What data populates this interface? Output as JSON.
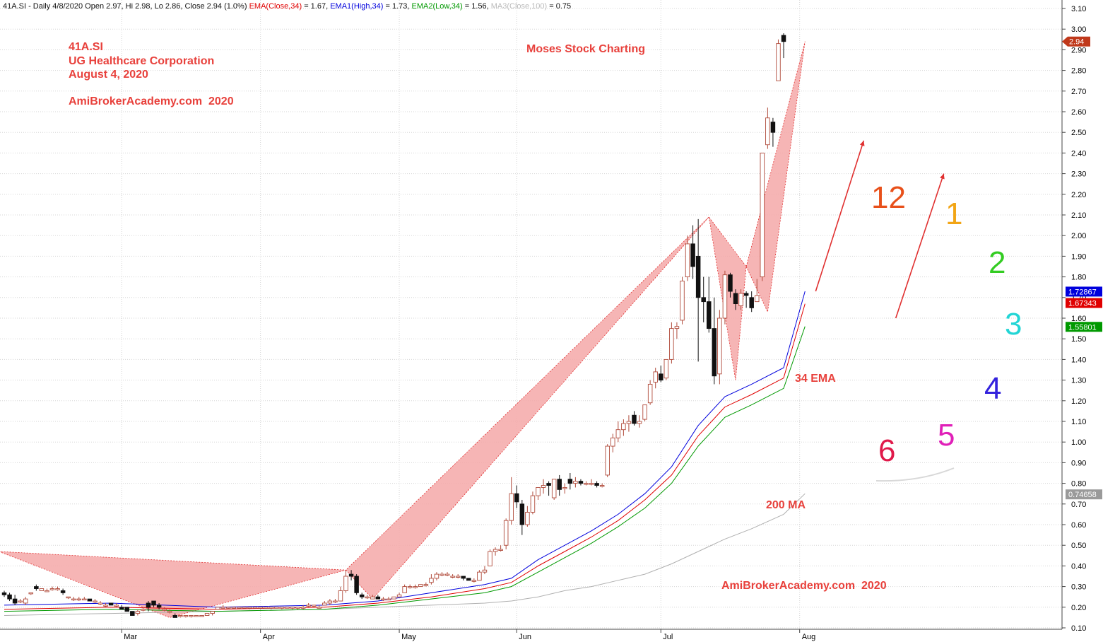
{
  "header": {
    "main": "41A.SI - Daily 4/8/2020 Open 2.97, Hi 2.98, Lo 2.86, Close 2.94 (1.0%)",
    "ema": "EMA(Close,34)",
    "ema_val": " = 1.67,",
    "ema1": "EMA1(High,34)",
    "ema1_val": " = 1.73,",
    "ema2": "EMA2(Low,34)",
    "ema2_val": " = 1.56,",
    "ma3": "MA3(Close,100)",
    "ma3_val": " = 0.75"
  },
  "annotations": {
    "symbol": "41A.SI",
    "company": "UG Healthcare Corporation",
    "date": "August 4, 2020",
    "site_top": "AmiBrokerAcademy.com  2020",
    "moses": "Moses Stock Charting",
    "ema_label": "34 EMA",
    "ma_label": "200 MA",
    "site_bottom": "AmiBrokerAcademy.com  2020"
  },
  "clock": {
    "numbers": [
      "12",
      "1",
      "2",
      "3",
      "4",
      "5",
      "6"
    ],
    "colors": [
      "#e8501a",
      "#f2a515",
      "#33cc22",
      "#22d5d5",
      "#3322dd",
      "#e020b8",
      "#e01a4a"
    ]
  },
  "colors": {
    "ema_close": "#e00000",
    "ema_high": "#0000dd",
    "ema_low": "#009900",
    "ma": "#b0b0b0",
    "pattern_fill": "#f4a8a8",
    "pattern_edge": "#e03030",
    "arrow": "#e03030"
  },
  "price_tags": [
    {
      "label": "2.94",
      "value": 2.94,
      "color": "#c0391b",
      "shape": "arrow"
    },
    {
      "label": "1.72867",
      "value": 1.72867,
      "color": "#0000dd"
    },
    {
      "label": "1.67343",
      "value": 1.67343,
      "color": "#e00000"
    },
    {
      "label": "1.55801",
      "value": 1.55801,
      "color": "#009900"
    },
    {
      "label": "0.74658",
      "value": 0.74658,
      "color": "#9a9a9a"
    }
  ],
  "chart_data": {
    "type": "candlestick",
    "ylim": [
      0.1,
      3.1
    ],
    "y_ticks": [
      0.1,
      0.2,
      0.3,
      0.4,
      0.5,
      0.6,
      0.7,
      0.8,
      0.9,
      1.0,
      1.1,
      1.2,
      1.3,
      1.4,
      1.5,
      1.6,
      1.7,
      1.8,
      1.9,
      2.0,
      2.1,
      2.2,
      2.3,
      2.4,
      2.5,
      2.6,
      2.7,
      2.8,
      2.9,
      3.0,
      3.1
    ],
    "y_tick_labels": [
      "0.10",
      "0.20",
      "0.30",
      "0.40",
      "0.50",
      "0.60",
      "0.70",
      "0.80",
      "0.90",
      "1.00",
      "1.10",
      "1.20",
      "1.30",
      "1.40",
      "1.50",
      "1.60",
      "1.70",
      "1.80",
      "1.90",
      "2.00",
      "2.10",
      "2.20",
      "2.30",
      "2.40",
      "2.50",
      "2.60",
      "2.70",
      "2.80",
      "2.90",
      "3.00",
      "3.10"
    ],
    "x_ticks": [
      {
        "label": "Mar",
        "index": 22
      },
      {
        "label": "Apr",
        "index": 48
      },
      {
        "label": "May",
        "index": 74
      },
      {
        "label": "Jun",
        "index": 96
      },
      {
        "label": "Jul",
        "index": 123
      },
      {
        "label": "Aug",
        "index": 149
      }
    ],
    "candles": [
      [
        0.27,
        0.28,
        0.25,
        0.26
      ],
      [
        0.26,
        0.27,
        0.23,
        0.24
      ],
      [
        0.24,
        0.26,
        0.21,
        0.22
      ],
      [
        0.23,
        0.24,
        0.22,
        0.23
      ],
      [
        0.22,
        0.25,
        0.21,
        0.24
      ],
      [
        0.27,
        0.27,
        0.26,
        0.27
      ],
      [
        0.3,
        0.31,
        0.28,
        0.29
      ],
      [
        0.28,
        0.29,
        0.28,
        0.29
      ],
      [
        0.28,
        0.29,
        0.28,
        0.28
      ],
      [
        0.29,
        0.3,
        0.28,
        0.29
      ],
      [
        0.29,
        0.3,
        0.28,
        0.29
      ],
      [
        0.28,
        0.29,
        0.26,
        0.27
      ],
      [
        0.25,
        0.25,
        0.24,
        0.25
      ],
      [
        0.24,
        0.25,
        0.23,
        0.24
      ],
      [
        0.24,
        0.25,
        0.23,
        0.24
      ],
      [
        0.24,
        0.25,
        0.24,
        0.24
      ],
      [
        0.24,
        0.24,
        0.23,
        0.23
      ],
      [
        0.23,
        0.24,
        0.22,
        0.23
      ],
      [
        0.22,
        0.23,
        0.21,
        0.22
      ],
      [
        0.21,
        0.22,
        0.2,
        0.21
      ],
      [
        0.22,
        0.22,
        0.21,
        0.21
      ],
      [
        0.21,
        0.22,
        0.2,
        0.21
      ],
      [
        0.2,
        0.21,
        0.19,
        0.19
      ],
      [
        0.2,
        0.2,
        0.18,
        0.18
      ],
      [
        0.18,
        0.18,
        0.16,
        0.16
      ],
      [
        0.17,
        0.19,
        0.16,
        0.18
      ],
      [
        0.19,
        0.2,
        0.18,
        0.19
      ],
      [
        0.22,
        0.23,
        0.18,
        0.2
      ],
      [
        0.23,
        0.23,
        0.2,
        0.21
      ],
      [
        0.21,
        0.22,
        0.19,
        0.2
      ],
      [
        0.19,
        0.2,
        0.18,
        0.19
      ],
      [
        0.18,
        0.19,
        0.17,
        0.18
      ],
      [
        0.16,
        0.17,
        0.15,
        0.15
      ],
      [
        0.16,
        0.16,
        0.15,
        0.16
      ],
      [
        0.16,
        0.16,
        0.15,
        0.16
      ],
      [
        0.16,
        0.16,
        0.15,
        0.16
      ],
      [
        0.16,
        0.16,
        0.16,
        0.16
      ],
      [
        0.16,
        0.16,
        0.16,
        0.16
      ],
      [
        0.16,
        0.17,
        0.16,
        0.17
      ],
      [
        0.17,
        0.18,
        0.16,
        0.18
      ],
      [
        0.19,
        0.2,
        0.19,
        0.2
      ],
      [
        0.2,
        0.21,
        0.2,
        0.2
      ],
      [
        0.2,
        0.2,
        0.19,
        0.2
      ],
      [
        0.2,
        0.2,
        0.19,
        0.2
      ],
      [
        0.2,
        0.2,
        0.19,
        0.2
      ],
      [
        0.2,
        0.2,
        0.2,
        0.2
      ],
      [
        0.2,
        0.2,
        0.19,
        0.2
      ],
      [
        0.2,
        0.2,
        0.2,
        0.2
      ],
      [
        0.2,
        0.2,
        0.19,
        0.2
      ],
      [
        0.2,
        0.2,
        0.2,
        0.2
      ],
      [
        0.2,
        0.2,
        0.19,
        0.2
      ],
      [
        0.2,
        0.2,
        0.2,
        0.2
      ],
      [
        0.2,
        0.2,
        0.19,
        0.2
      ],
      [
        0.2,
        0.2,
        0.2,
        0.2
      ],
      [
        0.2,
        0.2,
        0.19,
        0.2
      ],
      [
        0.2,
        0.2,
        0.19,
        0.2
      ],
      [
        0.2,
        0.21,
        0.19,
        0.2
      ],
      [
        0.21,
        0.22,
        0.2,
        0.21
      ],
      [
        0.21,
        0.21,
        0.2,
        0.21
      ],
      [
        0.2,
        0.21,
        0.2,
        0.2
      ],
      [
        0.21,
        0.23,
        0.21,
        0.22
      ],
      [
        0.22,
        0.24,
        0.21,
        0.23
      ],
      [
        0.23,
        0.24,
        0.22,
        0.23
      ],
      [
        0.23,
        0.3,
        0.23,
        0.28
      ],
      [
        0.28,
        0.38,
        0.27,
        0.35
      ],
      [
        0.36,
        0.38,
        0.33,
        0.35
      ],
      [
        0.35,
        0.36,
        0.26,
        0.27
      ],
      [
        0.26,
        0.27,
        0.24,
        0.25
      ],
      [
        0.25,
        0.26,
        0.24,
        0.25
      ],
      [
        0.24,
        0.26,
        0.24,
        0.25
      ],
      [
        0.25,
        0.26,
        0.24,
        0.24
      ],
      [
        0.24,
        0.25,
        0.23,
        0.24
      ],
      [
        0.24,
        0.25,
        0.24,
        0.24
      ],
      [
        0.24,
        0.25,
        0.24,
        0.25
      ],
      [
        0.25,
        0.27,
        0.25,
        0.26
      ],
      [
        0.27,
        0.31,
        0.27,
        0.3
      ],
      [
        0.3,
        0.31,
        0.29,
        0.3
      ],
      [
        0.3,
        0.31,
        0.29,
        0.3
      ],
      [
        0.3,
        0.31,
        0.3,
        0.31
      ],
      [
        0.31,
        0.32,
        0.3,
        0.31
      ],
      [
        0.32,
        0.36,
        0.31,
        0.34
      ],
      [
        0.34,
        0.37,
        0.33,
        0.36
      ],
      [
        0.36,
        0.37,
        0.35,
        0.36
      ],
      [
        0.36,
        0.37,
        0.35,
        0.36
      ],
      [
        0.35,
        0.36,
        0.34,
        0.35
      ],
      [
        0.35,
        0.36,
        0.34,
        0.35
      ],
      [
        0.35,
        0.35,
        0.33,
        0.34
      ],
      [
        0.34,
        0.34,
        0.33,
        0.33
      ],
      [
        0.33,
        0.34,
        0.32,
        0.33
      ],
      [
        0.33,
        0.38,
        0.33,
        0.37
      ],
      [
        0.37,
        0.4,
        0.36,
        0.38
      ],
      [
        0.4,
        0.48,
        0.4,
        0.47
      ],
      [
        0.47,
        0.49,
        0.45,
        0.48
      ],
      [
        0.48,
        0.5,
        0.47,
        0.48
      ],
      [
        0.5,
        0.63,
        0.48,
        0.62
      ],
      [
        0.62,
        0.83,
        0.6,
        0.75
      ],
      [
        0.75,
        0.79,
        0.68,
        0.71
      ],
      [
        0.7,
        0.72,
        0.55,
        0.6
      ],
      [
        0.6,
        0.69,
        0.59,
        0.66
      ],
      [
        0.66,
        0.76,
        0.65,
        0.74
      ],
      [
        0.74,
        0.78,
        0.72,
        0.78
      ],
      [
        0.78,
        0.82,
        0.75,
        0.79
      ],
      [
        0.8,
        0.81,
        0.74,
        0.79
      ],
      [
        0.73,
        0.82,
        0.72,
        0.82
      ],
      [
        0.82,
        0.84,
        0.74,
        0.77
      ],
      [
        0.78,
        0.8,
        0.75,
        0.78
      ],
      [
        0.82,
        0.85,
        0.77,
        0.8
      ],
      [
        0.8,
        0.83,
        0.78,
        0.81
      ],
      [
        0.81,
        0.82,
        0.79,
        0.8
      ],
      [
        0.8,
        0.81,
        0.79,
        0.8
      ],
      [
        0.8,
        0.82,
        0.79,
        0.8
      ],
      [
        0.8,
        0.81,
        0.78,
        0.79
      ],
      [
        0.79,
        0.8,
        0.78,
        0.79
      ],
      [
        0.84,
        0.99,
        0.83,
        0.98
      ],
      [
        0.98,
        1.04,
        0.95,
        1.02
      ],
      [
        1.02,
        1.1,
        1.0,
        1.06
      ],
      [
        1.06,
        1.11,
        1.03,
        1.09
      ],
      [
        1.09,
        1.13,
        1.05,
        1.1
      ],
      [
        1.13,
        1.15,
        1.08,
        1.09
      ],
      [
        1.09,
        1.13,
        1.07,
        1.1
      ],
      [
        1.11,
        1.18,
        1.1,
        1.18
      ],
      [
        1.19,
        1.3,
        1.18,
        1.28
      ],
      [
        1.29,
        1.36,
        1.26,
        1.34
      ],
      [
        1.33,
        1.37,
        1.29,
        1.3
      ],
      [
        1.31,
        1.4,
        1.3,
        1.4
      ],
      [
        1.4,
        1.58,
        1.38,
        1.55
      ],
      [
        1.55,
        1.58,
        1.5,
        1.56
      ],
      [
        1.59,
        1.8,
        1.57,
        1.78
      ],
      [
        1.8,
        2.0,
        1.78,
        1.96
      ],
      [
        1.96,
        2.05,
        1.79,
        1.85
      ],
      [
        1.9,
        2.08,
        1.39,
        1.7
      ],
      [
        1.7,
        1.8,
        1.58,
        1.68
      ],
      [
        1.68,
        1.8,
        1.53,
        1.55
      ],
      [
        1.55,
        1.7,
        1.28,
        1.32
      ],
      [
        1.33,
        1.64,
        1.28,
        1.6
      ],
      [
        1.6,
        1.83,
        1.57,
        1.81
      ],
      [
        1.81,
        1.82,
        1.7,
        1.73
      ],
      [
        1.72,
        1.74,
        1.64,
        1.67
      ],
      [
        1.66,
        1.74,
        1.64,
        1.72
      ],
      [
        1.72,
        1.73,
        1.65,
        1.71
      ],
      [
        1.7,
        1.73,
        1.63,
        1.65
      ],
      [
        1.68,
        1.79,
        1.68,
        1.71
      ],
      [
        1.8,
        2.4,
        1.78,
        2.4
      ],
      [
        2.44,
        2.62,
        2.42,
        2.57
      ],
      [
        2.55,
        2.57,
        2.43,
        2.5
      ],
      [
        2.75,
        2.95,
        2.75,
        2.93
      ],
      [
        2.97,
        2.98,
        2.86,
        2.94
      ]
    ],
    "indicators": {
      "ema_close": {
        "name": "EMA(Close,34)",
        "x": [
          0,
          20,
          40,
          60,
          70,
          80,
          90,
          95,
          100,
          105,
          110,
          115,
          120,
          125,
          130,
          135,
          140,
          146,
          150
        ],
        "y": [
          0.19,
          0.2,
          0.19,
          0.2,
          0.22,
          0.25,
          0.29,
          0.32,
          0.4,
          0.47,
          0.54,
          0.62,
          0.72,
          0.84,
          1.03,
          1.17,
          1.23,
          1.31,
          1.67
        ]
      },
      "ema_high": {
        "name": "EMA1(High,34)",
        "x": [
          0,
          20,
          40,
          60,
          70,
          80,
          90,
          95,
          100,
          105,
          110,
          115,
          120,
          125,
          130,
          135,
          140,
          146,
          150
        ],
        "y": [
          0.21,
          0.22,
          0.2,
          0.21,
          0.23,
          0.27,
          0.31,
          0.34,
          0.43,
          0.5,
          0.57,
          0.65,
          0.75,
          0.88,
          1.08,
          1.22,
          1.28,
          1.36,
          1.73
        ]
      },
      "ema_low": {
        "name": "EMA2(Low,34)",
        "x": [
          0,
          20,
          40,
          60,
          70,
          80,
          90,
          95,
          100,
          105,
          110,
          115,
          120,
          125,
          130,
          135,
          140,
          146,
          150
        ],
        "y": [
          0.18,
          0.19,
          0.18,
          0.19,
          0.21,
          0.24,
          0.27,
          0.3,
          0.37,
          0.44,
          0.51,
          0.59,
          0.68,
          0.8,
          0.98,
          1.12,
          1.18,
          1.26,
          1.56
        ]
      },
      "ma": {
        "name": "MA3(Close,100)",
        "x": [
          0,
          20,
          40,
          60,
          70,
          80,
          90,
          95,
          100,
          105,
          110,
          115,
          120,
          125,
          130,
          135,
          140,
          146,
          150
        ],
        "y": [
          0.16,
          0.17,
          0.18,
          0.19,
          0.2,
          0.21,
          0.22,
          0.23,
          0.25,
          0.28,
          0.3,
          0.33,
          0.36,
          0.41,
          0.47,
          0.53,
          0.58,
          0.65,
          0.75
        ]
      }
    },
    "pattern": [
      {
        "points": [
          [
            -1,
            0.47
          ],
          [
            31,
            0.15
          ],
          [
            64,
            0.38
          ]
        ]
      },
      {
        "points": [
          [
            64,
            0.38
          ],
          [
            69,
            0.24
          ],
          [
            132,
            2.09
          ]
        ]
      },
      {
        "points": [
          [
            132,
            2.09
          ],
          [
            137,
            1.3
          ],
          [
            139,
            1.85
          ]
        ]
      },
      {
        "points": [
          [
            139,
            1.85
          ],
          [
            143,
            1.63
          ],
          [
            150,
            2.94
          ]
        ]
      }
    ],
    "arrows": [
      {
        "from": [
          152,
          1.73
        ],
        "to": [
          161,
          2.46
        ]
      },
      {
        "from": [
          167,
          1.6
        ],
        "to": [
          176,
          2.3
        ]
      }
    ]
  }
}
